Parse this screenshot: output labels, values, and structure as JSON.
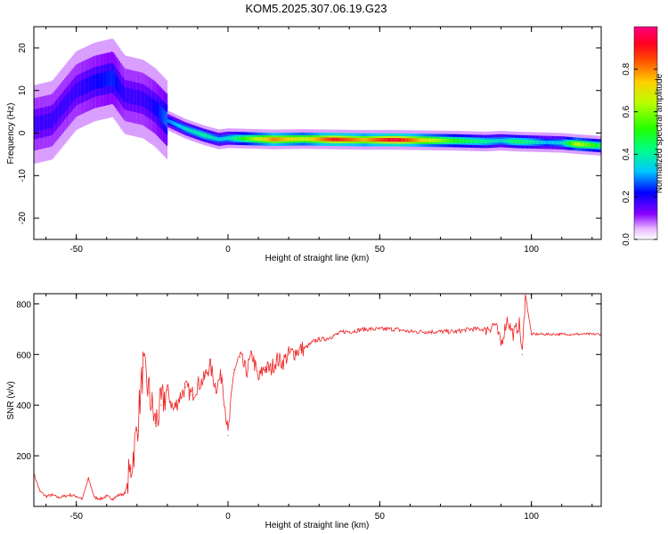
{
  "figure_title": "KOM5.2025.307.06.19.G23",
  "colors": {
    "snr_line": "#ee2222",
    "axis": "#000000",
    "background": "#ffffff"
  },
  "colorbar": {
    "label": "Normalized spectral amplitude",
    "range": [
      0,
      1
    ],
    "ticks": [
      "0.0",
      "0.2",
      "0.4",
      "0.6",
      "0.8"
    ],
    "tick_values": [
      0.0,
      0.2,
      0.4,
      0.6,
      0.8
    ],
    "colormap": "rainbow (white-violet-blue-cyan-green-yellow-red-magenta)"
  },
  "chart_data": [
    {
      "type": "heatmap",
      "xlabel": "Height of straight line (km)",
      "ylabel": "Frequency (Hz)",
      "xlim": [
        -64,
        123
      ],
      "ylim": [
        -25,
        25
      ],
      "xticks": [
        "-50",
        "0",
        "50",
        "100"
      ],
      "xtick_values": [
        -50,
        0,
        50,
        100
      ],
      "yticks": [
        "-20",
        "-10",
        "0",
        "10",
        "20"
      ],
      "ytick_values": [
        -20,
        -10,
        0,
        10,
        20
      ],
      "ridge": {
        "x": [
          -64,
          -58,
          -50,
          -44,
          -38,
          -34,
          -28,
          -24,
          -20,
          -14,
          -8,
          -3,
          0,
          5,
          15,
          25,
          35,
          45,
          55,
          65,
          75,
          85,
          90,
          95,
          100,
          105,
          110,
          115,
          123
        ],
        "frequency": [
          2,
          3,
          10,
          12,
          13,
          9,
          8,
          6,
          3,
          1,
          -0.5,
          -1.5,
          -1.2,
          -1.3,
          -1.5,
          -1.4,
          -1.5,
          -1.6,
          -1.6,
          -1.7,
          -1.8,
          -2.0,
          -1.8,
          -2.0,
          -2.1,
          -2.2,
          -2.3,
          -2.6,
          -3.0
        ],
        "amplitude": [
          0.12,
          0.12,
          0.12,
          0.15,
          0.18,
          0.12,
          0.12,
          0.15,
          0.22,
          0.3,
          0.35,
          0.28,
          0.3,
          0.45,
          0.75,
          0.6,
          0.85,
          0.7,
          0.9,
          0.65,
          0.45,
          0.35,
          0.3,
          0.4,
          0.35,
          0.25,
          0.3,
          0.6,
          0.4
        ]
      }
    },
    {
      "type": "line",
      "xlabel": "Height of straight line (km)",
      "ylabel": "SNR (v/v)",
      "xlim": [
        -64,
        123
      ],
      "ylim": [
        0,
        840
      ],
      "xticks": [
        "-50",
        "0",
        "50",
        "100"
      ],
      "xtick_values": [
        -50,
        0,
        50,
        100
      ],
      "yticks": [
        "200",
        "400",
        "600",
        "800"
      ],
      "ytick_values": [
        200,
        400,
        600,
        800
      ],
      "series": [
        {
          "x": [
            -64,
            -62,
            -60,
            -58,
            -56,
            -54,
            -52,
            -50,
            -48,
            -46,
            -44,
            -42,
            -40,
            -38,
            -36,
            -34,
            -32,
            -30,
            -28,
            -26,
            -24,
            -22,
            -20,
            -18,
            -16,
            -14,
            -12,
            -10,
            -8,
            -6,
            -4,
            -2,
            0,
            2,
            4,
            6,
            8,
            10,
            12,
            14,
            16,
            18,
            20,
            22,
            24,
            26,
            28,
            30,
            32,
            34,
            36,
            38,
            40,
            45,
            50,
            55,
            60,
            65,
            70,
            75,
            80,
            85,
            88,
            90,
            92,
            94,
            96,
            97,
            98,
            100,
            105,
            110,
            115,
            120,
            123
          ],
          "values": [
            130,
            60,
            40,
            45,
            35,
            40,
            45,
            40,
            30,
            110,
            35,
            30,
            40,
            30,
            45,
            50,
            150,
            300,
            550,
            450,
            330,
            400,
            460,
            380,
            430,
            470,
            440,
            480,
            500,
            560,
            470,
            520,
            280,
            540,
            590,
            530,
            600,
            500,
            550,
            540,
            580,
            570,
            600,
            610,
            620,
            630,
            650,
            660,
            660,
            670,
            680,
            690,
            690,
            700,
            700,
            700,
            690,
            690,
            690,
            690,
            700,
            700,
            720,
            640,
            740,
            680,
            720,
            600,
            840,
            680,
            680,
            680,
            680,
            680,
            680
          ]
        }
      ]
    }
  ]
}
